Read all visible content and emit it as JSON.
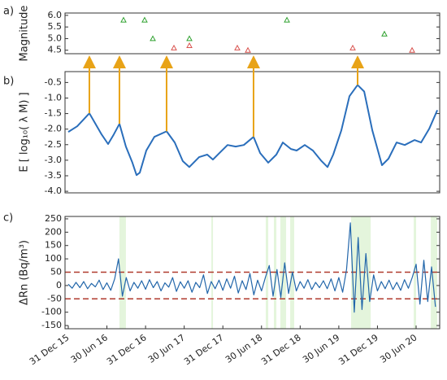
{
  "chart_data": [
    {
      "type": "scatter",
      "panel": "a)",
      "ylabel": "Magnitude",
      "xlim": [
        2015.958,
        2020.805
      ],
      "ylim": [
        4.35,
        6.1
      ],
      "yticks": [
        4.5,
        {
          "value": 5,
          "label": "5.0"
        },
        5.5,
        {
          "value": 6,
          "label": "6.0"
        }
      ],
      "series": [
        {
          "color": "#2ca02c",
          "x": [
            2016.715,
            2016.988,
            2017.094,
            2017.567,
            2018.829,
            2020.09
          ],
          "values": [
            5.8,
            5.8,
            5.0,
            5.0,
            5.8,
            5.2
          ]
        },
        {
          "color": "#d9534f",
          "x": [
            2017.367,
            2017.567,
            2018.187,
            2018.324,
            2019.68,
            2020.448
          ],
          "values": [
            4.6,
            4.7,
            4.6,
            4.5,
            4.6,
            4.5
          ]
        }
      ]
    },
    {
      "type": "line",
      "panel": "b)",
      "ylabel": "E [ log₁₀( λ M) ]",
      "xlim": [
        2015.958,
        2020.805
      ],
      "ylim": [
        -4.05,
        -0.15
      ],
      "yticks": [
        -0.5,
        {
          "value": -1,
          "label": "-1.0"
        },
        -1.5,
        {
          "value": -2,
          "label": "-2.0"
        },
        -2.5,
        {
          "value": -3,
          "label": "-3.0"
        },
        -3.5,
        {
          "value": -4,
          "label": "-4.0"
        }
      ],
      "series": [
        {
          "color": "#2a6ebb",
          "x": [
            2016.0,
            2016.116,
            2016.273,
            2016.431,
            2016.515,
            2016.589,
            2016.662,
            2016.746,
            2016.83,
            2016.883,
            2016.925,
            2017.009,
            2017.114,
            2017.272,
            2017.377,
            2017.482,
            2017.566,
            2017.693,
            2017.798,
            2017.872,
            2017.956,
            2018.061,
            2018.166,
            2018.271,
            2018.397,
            2018.482,
            2018.587,
            2018.692,
            2018.776,
            2018.881,
            2018.955,
            2019.06,
            2019.165,
            2019.27,
            2019.354,
            2019.428,
            2019.533,
            2019.638,
            2019.743,
            2019.828,
            2019.933,
            2020.059,
            2020.143,
            2020.248,
            2020.353,
            2020.479,
            2020.564,
            2020.669,
            2020.774
          ],
          "values": [
            -2.09,
            -1.91,
            -1.49,
            -2.17,
            -2.48,
            -2.17,
            -1.83,
            -2.56,
            -3.08,
            -3.48,
            -3.4,
            -2.69,
            -2.25,
            -2.07,
            -2.43,
            -3.03,
            -3.22,
            -2.9,
            -2.82,
            -2.98,
            -2.77,
            -2.51,
            -2.56,
            -2.51,
            -2.25,
            -2.77,
            -3.08,
            -2.82,
            -2.43,
            -2.64,
            -2.69,
            -2.51,
            -2.69,
            -3.01,
            -3.22,
            -2.82,
            -2.04,
            -0.94,
            -0.58,
            -0.79,
            -2.04,
            -3.16,
            -2.95,
            -2.43,
            -2.51,
            -2.35,
            -2.43,
            -1.99,
            -1.39
          ]
        }
      ],
      "arrows": {
        "color": "#e8a317",
        "x": [
          2016.273,
          2016.662,
          2017.272,
          2018.397,
          2019.743
        ],
        "values": [
          -1.49,
          -1.83,
          -2.07,
          -2.25,
          -0.58
        ]
      }
    },
    {
      "type": "line",
      "panel": "c)",
      "ylabel": "ΔRn (Bq/m³)",
      "xlim": [
        2015.958,
        2020.805
      ],
      "ylim": [
        -162,
        259
      ],
      "yticks": [
        -150,
        -100,
        -50,
        0,
        50,
        100,
        150,
        200,
        250
      ],
      "xticks": [
        {
          "value": 2016.0,
          "label": "31 Dec 15"
        },
        {
          "value": 2016.5,
          "label": "30 Jun 16"
        },
        {
          "value": 2017.0,
          "label": "31 Dec 16"
        },
        {
          "value": 2017.5,
          "label": "30 Jun 17"
        },
        {
          "value": 2018.0,
          "label": "31 Dec 17"
        },
        {
          "value": 2018.5,
          "label": "30 Jun 18"
        },
        {
          "value": 2019.0,
          "label": "31 Dec 18"
        },
        {
          "value": 2019.5,
          "label": "30 Jun 19"
        },
        {
          "value": 2020.0,
          "label": "31 Dec 19"
        },
        {
          "value": 2020.5,
          "label": "30 Jun 20"
        }
      ],
      "thresholds": {
        "color": "#b03a2e",
        "values": [
          50,
          -50
        ]
      },
      "bands": {
        "color": "#dff3d6",
        "x": [
          [
            2016.662,
            2016.746
          ],
          [
            2017.851,
            2017.872
          ],
          [
            2018.555,
            2018.587
          ],
          [
            2018.66,
            2018.692
          ],
          [
            2018.744,
            2018.818
          ],
          [
            2018.871,
            2018.923
          ],
          [
            2019.659,
            2019.912
          ],
          [
            2020.469,
            2020.5
          ],
          [
            2020.69,
            2020.774
          ]
        ]
      },
      "series": [
        {
          "color": "#2266aa",
          "x": [
            2016.0,
            2016.05,
            2016.1,
            2016.15,
            2016.2,
            2016.25,
            2016.3,
            2016.35,
            2016.4,
            2016.45,
            2016.5,
            2016.55,
            2016.6,
            2016.65,
            2016.7,
            2016.75,
            2016.8,
            2016.85,
            2016.9,
            2016.95,
            2017.0,
            2017.05,
            2017.1,
            2017.15,
            2017.2,
            2017.25,
            2017.3,
            2017.35,
            2017.4,
            2017.45,
            2017.5,
            2017.55,
            2017.6,
            2017.65,
            2017.7,
            2017.75,
            2017.8,
            2017.85,
            2017.9,
            2017.95,
            2018.0,
            2018.05,
            2018.1,
            2018.15,
            2018.2,
            2018.25,
            2018.3,
            2018.35,
            2018.4,
            2018.45,
            2018.5,
            2018.55,
            2018.6,
            2018.65,
            2018.7,
            2018.75,
            2018.8,
            2018.85,
            2018.9,
            2018.95,
            2019.0,
            2019.05,
            2019.1,
            2019.15,
            2019.2,
            2019.25,
            2019.3,
            2019.35,
            2019.4,
            2019.45,
            2019.5,
            2019.55,
            2019.6,
            2019.65,
            2019.7,
            2019.75,
            2019.8,
            2019.85,
            2019.9,
            2019.95,
            2020.0,
            2020.05,
            2020.1,
            2020.15,
            2020.2,
            2020.25,
            2020.3,
            2020.35,
            2020.4,
            2020.45,
            2020.5,
            2020.55,
            2020.6,
            2020.65,
            2020.7,
            2020.75
          ],
          "values": [
            5,
            -10,
            12,
            -8,
            15,
            -12,
            8,
            -5,
            20,
            -15,
            10,
            -18,
            25,
            100,
            -40,
            30,
            -20,
            12,
            -10,
            18,
            -14,
            22,
            -8,
            15,
            -20,
            10,
            -6,
            30,
            -22,
            14,
            -10,
            18,
            -25,
            12,
            -8,
            40,
            -30,
            15,
            -12,
            20,
            -18,
            25,
            -10,
            35,
            -28,
            18,
            -15,
            45,
            -35,
            20,
            -20,
            30,
            75,
            -40,
            60,
            -45,
            85,
            -30,
            50,
            -20,
            15,
            -10,
            22,
            -15,
            12,
            -8,
            18,
            -12,
            25,
            -20,
            30,
            -25,
            60,
            235,
            -100,
            180,
            -90,
            120,
            -60,
            40,
            -20,
            15,
            -12,
            20,
            -15,
            12,
            -18,
            22,
            -10,
            30,
            80,
            -70,
            95,
            -60,
            70,
            -80
          ]
        }
      ]
    }
  ]
}
